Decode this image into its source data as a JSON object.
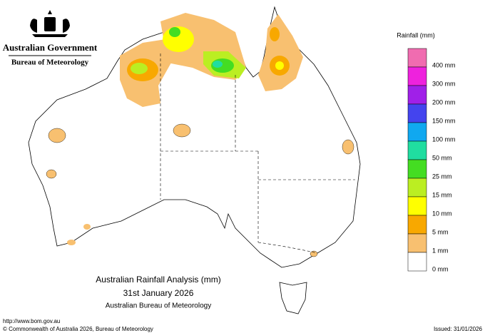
{
  "header": {
    "government": "Australian Government",
    "bureau": "Bureau of Meteorology"
  },
  "legend": {
    "title": "Rainfall (mm)",
    "items": [
      {
        "label": "400 mm",
        "color": "#f06cb0"
      },
      {
        "label": "300 mm",
        "color": "#ee22dd"
      },
      {
        "label": "200 mm",
        "color": "#a020e8"
      },
      {
        "label": "150 mm",
        "color": "#4444ee"
      },
      {
        "label": "100 mm",
        "color": "#10a8f0"
      },
      {
        "label": "50 mm",
        "color": "#20dda0"
      },
      {
        "label": "25 mm",
        "color": "#44dd22"
      },
      {
        "label": "15 mm",
        "color": "#bbee22"
      },
      {
        "label": "10 mm",
        "color": "#ffff00"
      },
      {
        "label": "5 mm",
        "color": "#f8a800"
      },
      {
        "label": "1 mm",
        "color": "#f8c070"
      },
      {
        "label": "0 mm",
        "color": "#ffffff"
      }
    ]
  },
  "caption": {
    "title": "Australian Rainfall Analysis (mm)",
    "date": "31st January 2026",
    "source": "Australian Bureau of Meteorology"
  },
  "footer": {
    "url": "http://www.bom.gov.au",
    "copyright": "© Commonwealth of Australia 2026, Bureau of Meteorology",
    "issued": "Issued: 31/01/2026"
  }
}
